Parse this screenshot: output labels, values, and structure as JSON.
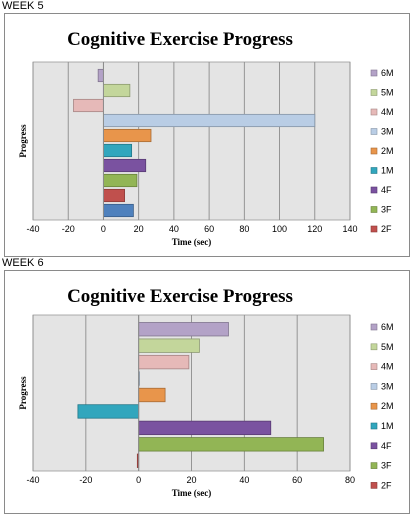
{
  "charts": [
    {
      "section_label": "WEEK 5"
    },
    {
      "section_label": "WEEK 6"
    }
  ],
  "colors": {
    "6M": "#b3a2c7",
    "5M": "#c3d69b",
    "4M": "#e6b9b8",
    "3M": "#b9cde5",
    "2M": "#e8954b",
    "1M": "#31a6bd",
    "4F": "#7a52a0",
    "3F": "#92b555",
    "2F": "#c0504d",
    "1F": "#4f81bd",
    "plot_bg": "#e4e4e4"
  },
  "chart_data": [
    {
      "type": "bar",
      "orientation": "horizontal",
      "title": "Cognitive Exercise Progress",
      "xlabel": "Time (sec)",
      "ylabel": "Progress",
      "xlim": [
        -40,
        140
      ],
      "xticks": [
        "-40",
        "-20",
        "0",
        "20",
        "40",
        "60",
        "80",
        "100",
        "120",
        "140"
      ],
      "grid": true,
      "legend_position": "right",
      "legend": [
        "6M",
        "5M",
        "4M",
        "3M",
        "2M",
        "1M",
        "4F",
        "3F",
        "2F"
      ],
      "series_order_top_to_bottom": [
        "6M",
        "5M",
        "4M",
        "3M",
        "2M",
        "1M",
        "4F",
        "3F",
        "2F",
        "1F"
      ],
      "values": {
        "6M": -3,
        "5M": 15,
        "4M": -17,
        "3M": 120,
        "2M": 27,
        "1M": 16,
        "4F": 24,
        "3F": 19,
        "2F": 12,
        "1F": 17
      }
    },
    {
      "type": "bar",
      "orientation": "horizontal",
      "title": "Cognitive Exercise Progress",
      "xlabel": "Time (sec)",
      "ylabel": "Progress",
      "xlim": [
        -40,
        80
      ],
      "xticks": [
        "-40",
        "-20",
        "0",
        "20",
        "40",
        "60",
        "80"
      ],
      "grid": true,
      "legend_position": "right",
      "legend": [
        "6M",
        "5M",
        "4M",
        "3M",
        "2M",
        "1M",
        "4F",
        "3F",
        "2F"
      ],
      "series_order_top_to_bottom": [
        "6M",
        "5M",
        "4M",
        "3M",
        "2M",
        "1M",
        "4F",
        "3F",
        "2F"
      ],
      "values": {
        "6M": 34,
        "5M": 23,
        "4M": 19,
        "3M": 0,
        "2M": 10,
        "1M": -23,
        "4F": 50,
        "3F": 70,
        "2F": -0.5
      }
    }
  ]
}
